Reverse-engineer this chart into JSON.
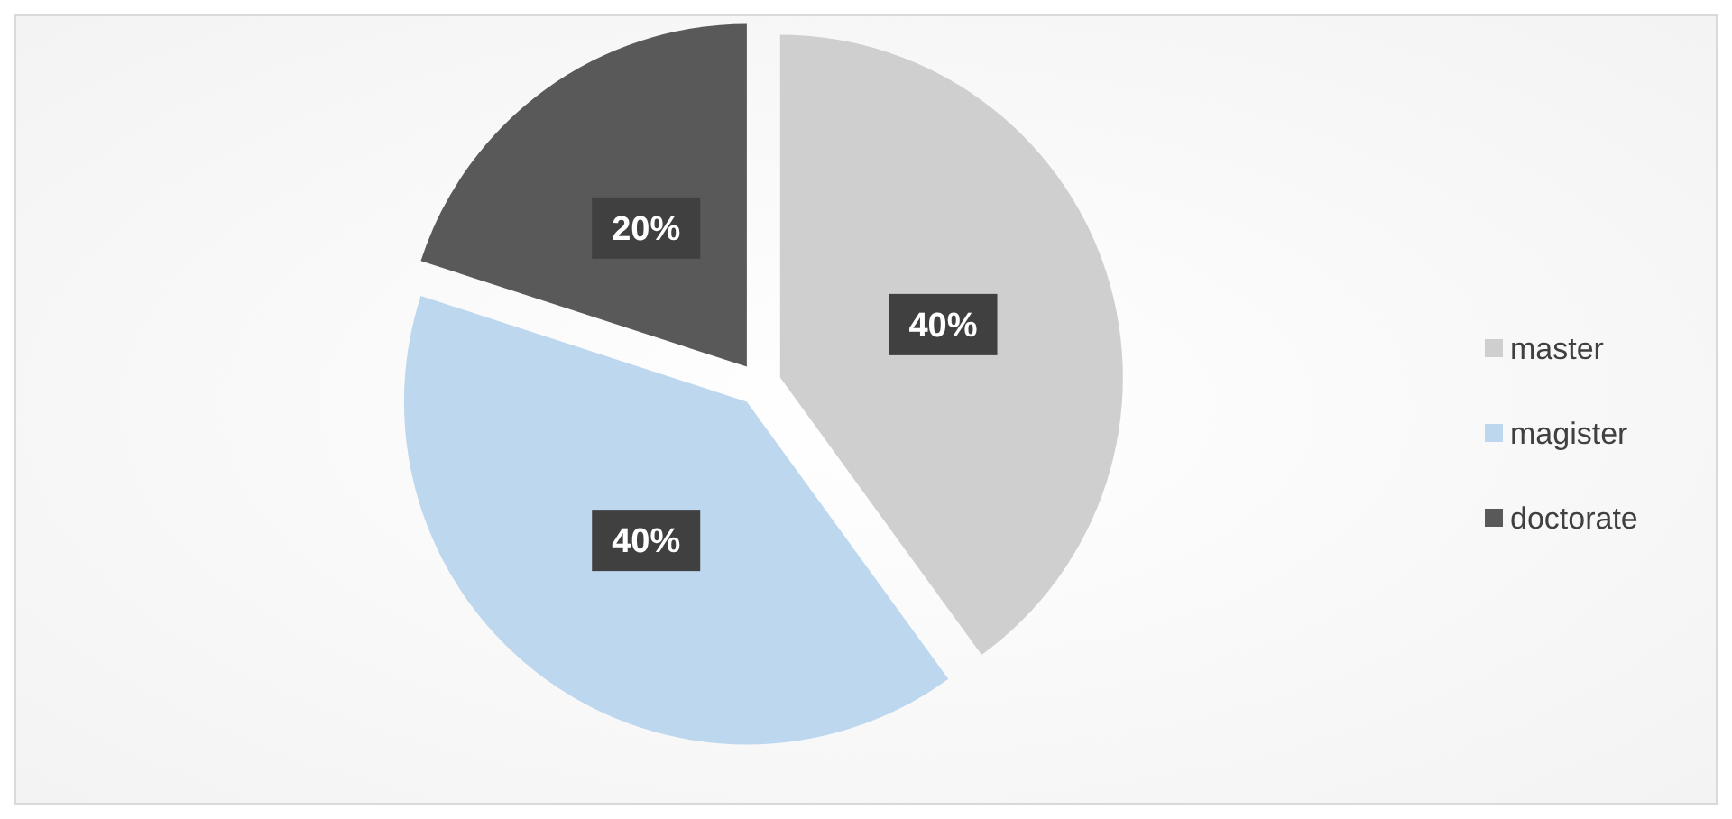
{
  "chart_data": {
    "type": "pie",
    "categories": [
      "master",
      "magister",
      "doctorate"
    ],
    "values": [
      40,
      40,
      20
    ],
    "value_labels": [
      "40%",
      "40%",
      "20%"
    ],
    "colors": [
      "#cfcfcf",
      "#bdd7ee",
      "#595959"
    ],
    "legend": "right"
  }
}
